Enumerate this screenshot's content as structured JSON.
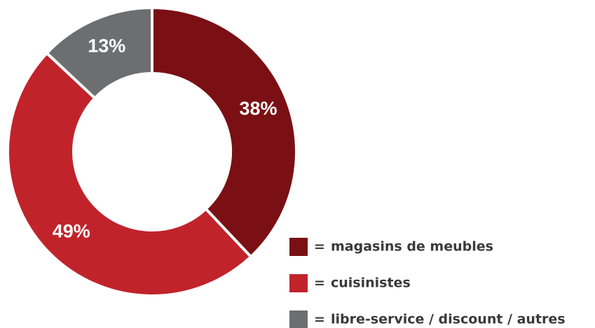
{
  "chart_data": {
    "type": "donut",
    "categories": [
      "magasins de meubles",
      "cuisinistes",
      "libre-service / discount / autres"
    ],
    "values": [
      38,
      49,
      13
    ],
    "value_labels": [
      "38%",
      "49%",
      "13%"
    ],
    "colors": [
      "#7a1013",
      "#c1232b",
      "#6d6e70"
    ],
    "legend_separator": "=",
    "legend": "bottom-right"
  }
}
